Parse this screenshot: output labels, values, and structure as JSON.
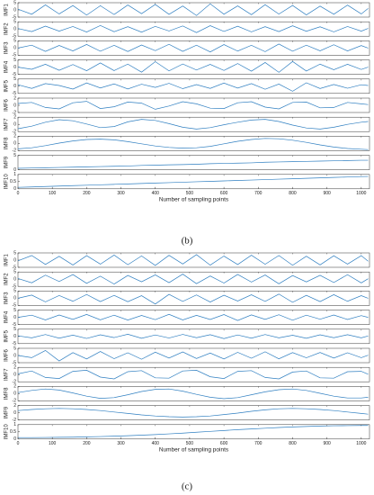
{
  "chart_data": [
    {
      "type": "line",
      "caption": "(b)",
      "xlabel": "Number of sampling points",
      "color": "#2f7fc1",
      "x": [
        0,
        40,
        80,
        120,
        160,
        200,
        240,
        280,
        320,
        360,
        400,
        440,
        480,
        520,
        560,
        600,
        640,
        680,
        720,
        760,
        800,
        840,
        880,
        920,
        960,
        1000,
        1020
      ],
      "xlim": [
        0,
        1024
      ],
      "xticks": [
        0,
        100,
        200,
        300,
        400,
        500,
        600,
        700,
        800,
        900,
        1000
      ],
      "panels": [
        {
          "name": "IMF1",
          "ylim": [
            -5,
            5
          ],
          "yticks": [
            -5,
            0,
            5
          ],
          "values": [
            0.5,
            -3,
            3.5,
            -2.8,
            3,
            -3.6,
            2.9,
            -3.2,
            3.4,
            -2.6,
            3.8,
            -3.1,
            2.7,
            -3.9,
            4.2,
            -3,
            2.8,
            -3.3,
            3.6,
            -2.9,
            3.1,
            -3.5,
            2.6,
            -3,
            3.3,
            -2.8,
            1
          ]
        },
        {
          "name": "IMF2",
          "ylim": [
            -5,
            5
          ],
          "yticks": [
            -5,
            0,
            5
          ],
          "values": [
            0.3,
            -1.8,
            2,
            -1.5,
            1.7,
            -2.1,
            2.4,
            -1.9,
            1.6,
            -2.2,
            1.8,
            -1.4,
            2.1,
            -2.5,
            2.3,
            -1.7,
            1.9,
            -2,
            1.6,
            -1.8,
            2.2,
            -1.6,
            1.5,
            -2,
            1.7,
            -1.5,
            0.4
          ]
        },
        {
          "name": "IMF3",
          "ylim": [
            -5,
            5
          ],
          "yticks": [
            -5,
            0,
            5
          ],
          "values": [
            0,
            2,
            -2.3,
            1.8,
            -2,
            2.5,
            -2.2,
            1.9,
            -2.4,
            2.1,
            -1.8,
            2.6,
            -2.3,
            2,
            -2.7,
            2.4,
            -2.1,
            1.9,
            -2.5,
            2.8,
            -2.2,
            2,
            -1.9,
            2.3,
            -2,
            1.7,
            0
          ]
        },
        {
          "name": "IMF4",
          "ylim": [
            -5,
            5
          ],
          "yticks": [
            -5,
            0,
            5
          ],
          "values": [
            0,
            -1.5,
            2,
            -2.2,
            1.8,
            -2.5,
            2.9,
            -2.4,
            2.1,
            -3.5,
            3.8,
            -2.6,
            2.2,
            -2,
            1.9,
            -2.3,
            2.5,
            -2.8,
            3.2,
            -3.6,
            3.9,
            -2.7,
            2.1,
            -1.8,
            2,
            -1.6,
            0
          ]
        },
        {
          "name": "IMF5",
          "ylim": [
            -5,
            5
          ],
          "yticks": [
            -5,
            0,
            5
          ],
          "values": [
            1,
            -1.5,
            1.8,
            0.5,
            -2,
            2.3,
            -1.2,
            1.6,
            -1.9,
            1.4,
            -0.8,
            2,
            -1.7,
            1.1,
            -1.5,
            2.2,
            -1.3,
            1.8,
            -2.1,
            1.5,
            -3.5,
            2.4,
            -1.6,
            1.2,
            -1.4,
            1,
            0.5
          ]
        },
        {
          "name": "IMF6",
          "ylim": [
            -2,
            2
          ],
          "yticks": [
            -2,
            0,
            2
          ],
          "values": [
            0.5,
            0.8,
            -0.6,
            -1,
            0.7,
            1.1,
            -0.9,
            -0.4,
            0.9,
            0.6,
            -1.1,
            -0.2,
            1,
            0.4,
            -0.8,
            -0.9,
            0.7,
            1,
            -0.5,
            -1,
            0.8,
            0.9,
            -0.7,
            -0.6,
            0.8,
            0.4,
            0.2
          ]
        },
        {
          "name": "IMF7",
          "ylim": [
            -2,
            2
          ],
          "yticks": [
            -2,
            0,
            2
          ],
          "values": [
            -1.2,
            -0.5,
            0.6,
            1.3,
            1,
            0.1,
            -0.9,
            -0.6,
            0.7,
            1.4,
            1.1,
            0.2,
            -0.8,
            -1.3,
            -0.9,
            -0.1,
            0.6,
            1.2,
            1.4,
            0.8,
            -0.2,
            -1,
            -1.3,
            -0.8,
            0,
            0.6,
            0.8
          ]
        },
        {
          "name": "IMF8",
          "ylim": [
            -2,
            2
          ],
          "yticks": [
            -2,
            0,
            2
          ],
          "values": [
            -1.5,
            -1.2,
            -0.6,
            0.1,
            0.7,
            1.1,
            1.2,
            1,
            0.5,
            -0.1,
            -0.7,
            -1.1,
            -1.3,
            -1.2,
            -0.8,
            -0.1,
            0.6,
            1.1,
            1.4,
            1.3,
            0.9,
            0.3,
            -0.4,
            -1,
            -1.4,
            -1.6,
            -1.7
          ]
        },
        {
          "name": "IMF9",
          "ylim": [
            0,
            5
          ],
          "yticks": [
            0,
            5
          ],
          "values": [
            0.5,
            0.6,
            0.7,
            0.8,
            0.9,
            1,
            1.1,
            1.2,
            1.3,
            1.5,
            1.6,
            1.7,
            1.8,
            1.9,
            2.1,
            2.2,
            2.3,
            2.4,
            2.6,
            2.7,
            2.8,
            2.9,
            3,
            3.1,
            3.2,
            3.3,
            3.3
          ]
        },
        {
          "name": "IMF10",
          "ylim": [
            0,
            1
          ],
          "yticks": [
            0,
            0.5,
            1
          ],
          "values": [
            0.1,
            0.13,
            0.16,
            0.19,
            0.22,
            0.25,
            0.28,
            0.31,
            0.34,
            0.37,
            0.4,
            0.43,
            0.46,
            0.49,
            0.52,
            0.55,
            0.58,
            0.61,
            0.64,
            0.67,
            0.7,
            0.73,
            0.76,
            0.79,
            0.82,
            0.85,
            0.86
          ]
        }
      ]
    },
    {
      "type": "line",
      "caption": "(c)",
      "xlabel": "Number of sampling points",
      "color": "#2f7fc1",
      "x": [
        0,
        40,
        80,
        120,
        160,
        200,
        240,
        280,
        320,
        360,
        400,
        440,
        480,
        520,
        560,
        600,
        640,
        680,
        720,
        760,
        800,
        840,
        880,
        920,
        960,
        1000,
        1020
      ],
      "xlim": [
        0,
        1024
      ],
      "xticks": [
        0,
        100,
        200,
        300,
        400,
        500,
        600,
        700,
        800,
        900,
        1000
      ],
      "panels": [
        {
          "name": "IMF1",
          "ylim": [
            -5,
            5
          ],
          "yticks": [
            -5,
            0,
            5
          ],
          "values": [
            -0.5,
            3.2,
            -3,
            2.6,
            -3.4,
            3.1,
            -2.8,
            3.5,
            -3.2,
            2.9,
            -3.7,
            3.3,
            -2.7,
            3.8,
            -3.5,
            2.8,
            -3.1,
            3.4,
            -2.9,
            3.2,
            -3.6,
            2.7,
            -3.3,
            3,
            -2.8,
            3.1,
            -0.8
          ]
        },
        {
          "name": "IMF2",
          "ylim": [
            -5,
            5
          ],
          "yticks": [
            -5,
            0,
            5
          ],
          "values": [
            0.5,
            -2.5,
            2.8,
            -1.6,
            3.2,
            -2.9,
            2.1,
            -3.4,
            2.6,
            -1.8,
            3,
            -2.4,
            3.5,
            -3.1,
            2.2,
            -2.7,
            3.3,
            -2,
            2.9,
            -3.2,
            2.5,
            -1.9,
            2.7,
            -2.3,
            3.1,
            -2.6,
            0.3
          ]
        },
        {
          "name": "IMF3",
          "ylim": [
            -5,
            5
          ],
          "yticks": [
            -5,
            0,
            5
          ],
          "values": [
            0,
            2.2,
            -2.5,
            1.9,
            -2.1,
            2.6,
            -2.3,
            2,
            -2.4,
            1.8,
            -4,
            2.7,
            -2.2,
            2.3,
            -2.6,
            2.1,
            -1.9,
            2.4,
            -2.2,
            2.9,
            -2.8,
            2,
            -2.3,
            2.5,
            -2.1,
            1.8,
            0
          ]
        },
        {
          "name": "IMF4",
          "ylim": [
            -5,
            5
          ],
          "yticks": [
            -5,
            0,
            5
          ],
          "values": [
            0,
            1.5,
            -1.8,
            1.6,
            -1.4,
            2,
            -1.7,
            1.5,
            -1.9,
            1.3,
            -1.6,
            2.1,
            -1.8,
            1.4,
            -1.5,
            1.9,
            -2.2,
            1.7,
            -1.4,
            1.8,
            -2,
            1.5,
            -1.3,
            1.6,
            -1.5,
            1.2,
            0
          ]
        },
        {
          "name": "IMF5",
          "ylim": [
            -5,
            5
          ],
          "yticks": [
            -5,
            0,
            5
          ],
          "values": [
            0.4,
            -1,
            1.3,
            -1.2,
            0.9,
            -1.4,
            1.1,
            -0.8,
            1.5,
            -1.3,
            1,
            -1.1,
            1.4,
            -0.9,
            1.2,
            -1.5,
            1,
            -1.2,
            1.3,
            -1,
            0.8,
            -1.3,
            1.1,
            -0.9,
            1.2,
            -1,
            0.3
          ]
        },
        {
          "name": "IMF6",
          "ylim": [
            -5,
            5
          ],
          "yticks": [
            -5,
            0,
            5
          ],
          "values": [
            0,
            -1.5,
            3.5,
            -3.8,
            2,
            -2.4,
            2.8,
            -2.2,
            1.9,
            -2.6,
            2.3,
            -1.8,
            2.5,
            -2.1,
            1.7,
            -2.4,
            2.2,
            -1.9,
            2.6,
            -2.3,
            2,
            -1.6,
            2.1,
            -1.8,
            1.9,
            -1.5,
            0.2
          ]
        },
        {
          "name": "IMF7",
          "ylim": [
            -2,
            2
          ],
          "yticks": [
            -2,
            0,
            2
          ],
          "values": [
            0.2,
            1,
            -0.8,
            -1.1,
            0.9,
            1.2,
            -0.7,
            -1.2,
            0.8,
            1.1,
            -0.9,
            -1,
            1,
            1.2,
            -0.6,
            -1.1,
            0.9,
            1.1,
            -0.8,
            -1.2,
            0.7,
            1,
            -0.9,
            -1,
            0.8,
            0.9,
            0.1
          ]
        },
        {
          "name": "IMF8",
          "ylim": [
            -2,
            2
          ],
          "yticks": [
            -2,
            0,
            2
          ],
          "values": [
            0.3,
            0.9,
            1.3,
            1,
            0.2,
            -0.7,
            -1.3,
            -1.1,
            -0.3,
            0.6,
            1.2,
            1.3,
            0.7,
            -0.2,
            -1,
            -1.4,
            -1.1,
            -0.3,
            0.5,
            1.1,
            1.3,
            0.9,
            0.1,
            -0.7,
            -1.2,
            -1.2,
            -1
          ]
        },
        {
          "name": "IMF9",
          "ylim": [
            -2,
            2
          ],
          "yticks": [
            -2,
            0,
            2
          ],
          "values": [
            0.6,
            0.9,
            1.1,
            1.2,
            1.1,
            0.9,
            0.6,
            0.2,
            -0.2,
            -0.6,
            -0.9,
            -1.1,
            -1.2,
            -1.1,
            -0.9,
            -0.5,
            -0.1,
            0.4,
            0.8,
            1.1,
            1.2,
            1.1,
            0.9,
            0.6,
            0.2,
            -0.2,
            -0.4
          ]
        },
        {
          "name": "IMF10",
          "ylim": [
            0,
            1
          ],
          "yticks": [
            0,
            0.5,
            1
          ],
          "values": [
            0.1,
            0.1,
            0.11,
            0.12,
            0.13,
            0.15,
            0.17,
            0.2,
            0.23,
            0.27,
            0.31,
            0.36,
            0.41,
            0.47,
            0.53,
            0.59,
            0.65,
            0.7,
            0.75,
            0.8,
            0.84,
            0.87,
            0.9,
            0.92,
            0.93,
            0.94,
            0.94
          ]
        }
      ]
    }
  ]
}
